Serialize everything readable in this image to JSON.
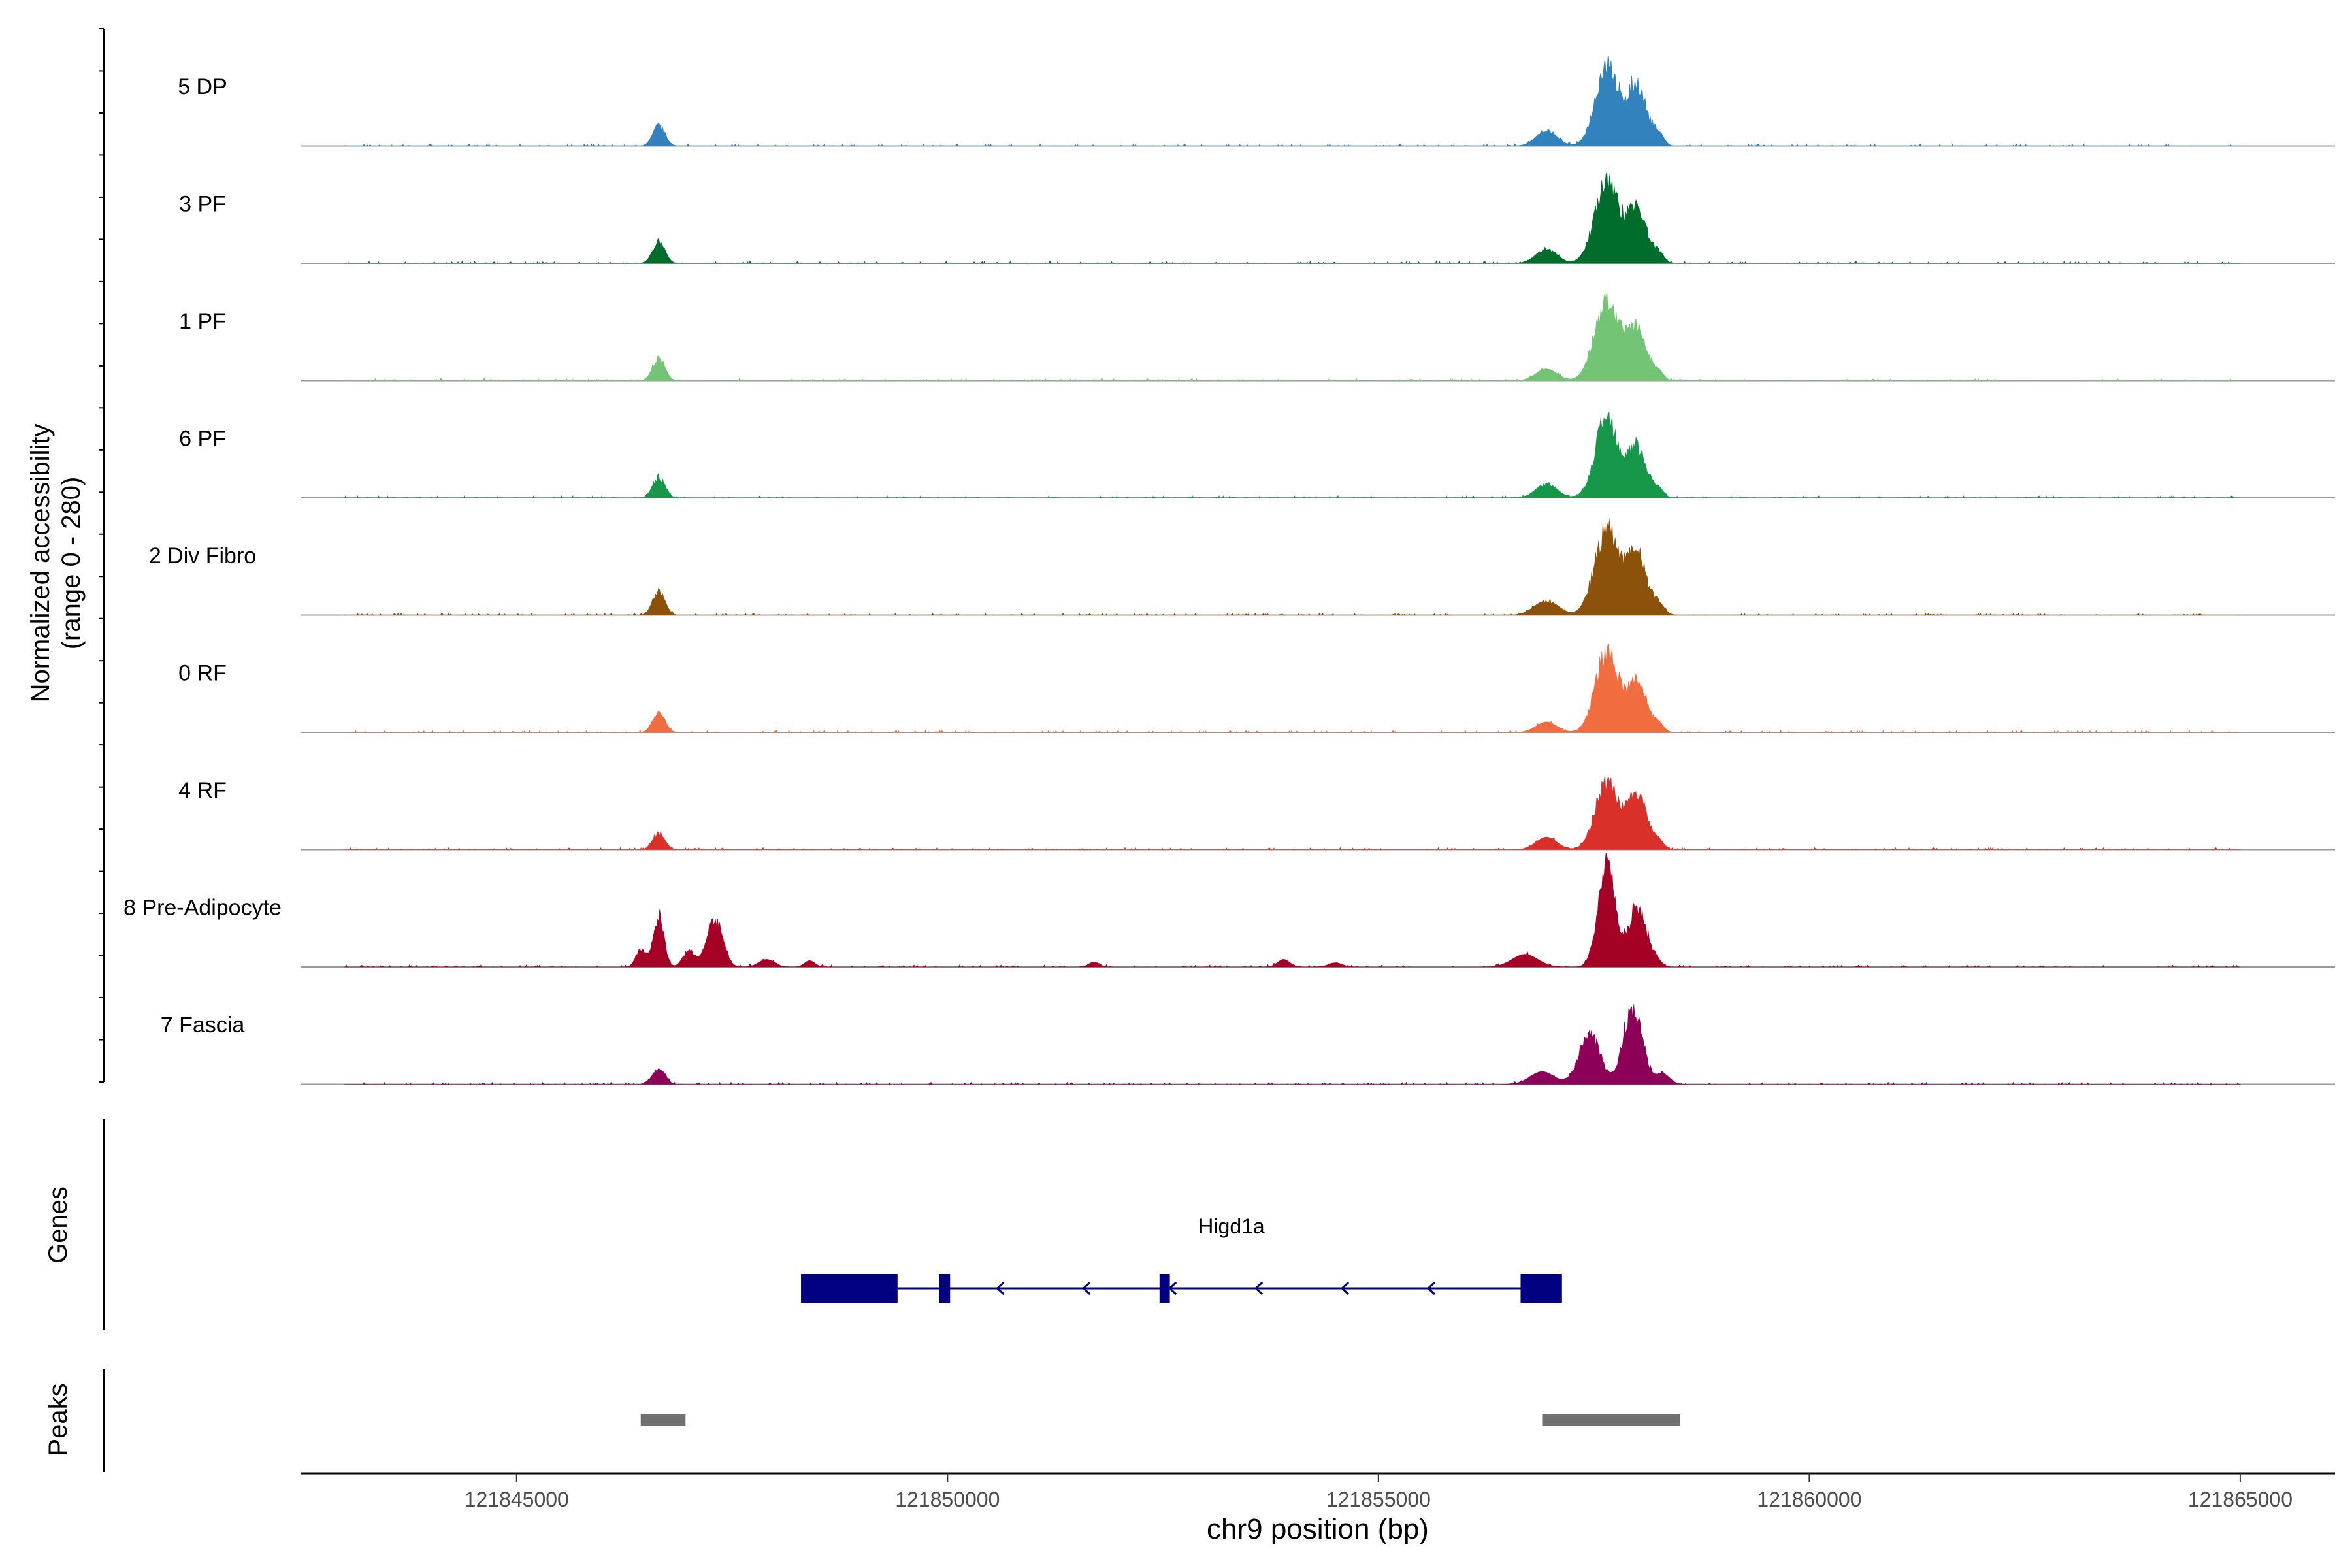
{
  "chart_data": {
    "type": "area",
    "subtype": "coverage-track",
    "y_axis_label_line1": "Normalized accessibility",
    "y_axis_label_line2": "(range 0 - 280)",
    "y_range": [
      0,
      280
    ],
    "x_axis_label": "chr9 position (bp)",
    "x_range": [
      121842500,
      121866100
    ],
    "x_ticks": [
      121845000,
      121850000,
      121855000,
      121860000,
      121865000
    ],
    "x_tick_labels": [
      "121845000",
      "121850000",
      "121855000",
      "121860000",
      "121865000"
    ],
    "peak_centers": {
      "small": [
        121846650,
        121847300
      ],
      "main": [
        121857650,
        121858000
      ]
    },
    "tracks": [
      {
        "name": "5 DP",
        "color": "#3182BD",
        "peaks": [
          [
            121846650,
            50,
            70
          ],
          [
            121856950,
            38,
            120
          ],
          [
            121857650,
            200,
            130
          ],
          [
            121858000,
            150,
            110
          ],
          [
            121858250,
            30,
            60
          ]
        ]
      },
      {
        "name": "3 PF",
        "color": "#006D2C",
        "peaks": [
          [
            121846650,
            55,
            70
          ],
          [
            121856950,
            35,
            120
          ],
          [
            121857650,
            195,
            140
          ],
          [
            121858000,
            135,
            110
          ],
          [
            121858250,
            25,
            60
          ]
        ]
      },
      {
        "name": "1 PF",
        "color": "#74C476",
        "peaks": [
          [
            121846650,
            55,
            70
          ],
          [
            121856950,
            28,
            120
          ],
          [
            121857650,
            195,
            140
          ],
          [
            121858000,
            130,
            110
          ],
          [
            121858250,
            20,
            60
          ]
        ]
      },
      {
        "name": "6 PF",
        "color": "#17974A",
        "peaks": [
          [
            121846650,
            50,
            70
          ],
          [
            121856950,
            35,
            120
          ],
          [
            121857650,
            200,
            130
          ],
          [
            121858000,
            125,
            110
          ],
          [
            121858250,
            20,
            60
          ]
        ]
      },
      {
        "name": "2 Div Fibro",
        "color": "#8C510A",
        "peaks": [
          [
            121846650,
            60,
            70
          ],
          [
            121856950,
            35,
            140
          ],
          [
            121857650,
            210,
            140
          ],
          [
            121858000,
            150,
            110
          ],
          [
            121858250,
            25,
            70
          ]
        ]
      },
      {
        "name": "0 RF",
        "color": "#F16D40",
        "peaks": [
          [
            121846650,
            50,
            70
          ],
          [
            121856950,
            25,
            120
          ],
          [
            121857650,
            200,
            130
          ],
          [
            121858000,
            130,
            110
          ],
          [
            121858250,
            20,
            60
          ]
        ]
      },
      {
        "name": "4 RF",
        "color": "#D9302A",
        "peaks": [
          [
            121846650,
            40,
            70
          ],
          [
            121856950,
            30,
            120
          ],
          [
            121857650,
            165,
            130
          ],
          [
            121858000,
            140,
            110
          ],
          [
            121858250,
            20,
            60
          ]
        ]
      },
      {
        "name": "8 Pre-Adipocyte",
        "color": "#A50026",
        "peaks": [
          [
            121846450,
            45,
            60
          ],
          [
            121846650,
            125,
            60
          ],
          [
            121847000,
            40,
            70
          ],
          [
            121847300,
            120,
            90
          ],
          [
            121847900,
            18,
            90
          ],
          [
            121848400,
            15,
            60
          ],
          [
            121851700,
            12,
            60
          ],
          [
            121853900,
            18,
            70
          ],
          [
            121854500,
            10,
            80
          ],
          [
            121856700,
            30,
            150
          ],
          [
            121857650,
            260,
            100
          ],
          [
            121858000,
            145,
            100
          ],
          [
            121858200,
            20,
            70
          ]
        ]
      },
      {
        "name": "7 Fascia",
        "color": "#8C0057",
        "peaks": [
          [
            121846650,
            40,
            70
          ],
          [
            121856900,
            30,
            140
          ],
          [
            121857450,
            125,
            120
          ],
          [
            121857950,
            185,
            110
          ],
          [
            121858300,
            25,
            80
          ]
        ]
      }
    ],
    "genes_label": "Genes",
    "gene": {
      "name": "Higd1a",
      "strand": "-",
      "color": "#000080",
      "exons": [
        [
          121848300,
          121849420
        ],
        [
          121849900,
          121850030
        ],
        [
          121852460,
          121852580
        ],
        [
          121856650,
          121857130
        ]
      ],
      "intron_range": [
        121849420,
        121856650
      ]
    },
    "peaks_label": "Peaks",
    "peaks_color": "#707070",
    "peaks_regions": [
      [
        121846440,
        121846960
      ],
      [
        121856900,
        121858500
      ]
    ]
  }
}
